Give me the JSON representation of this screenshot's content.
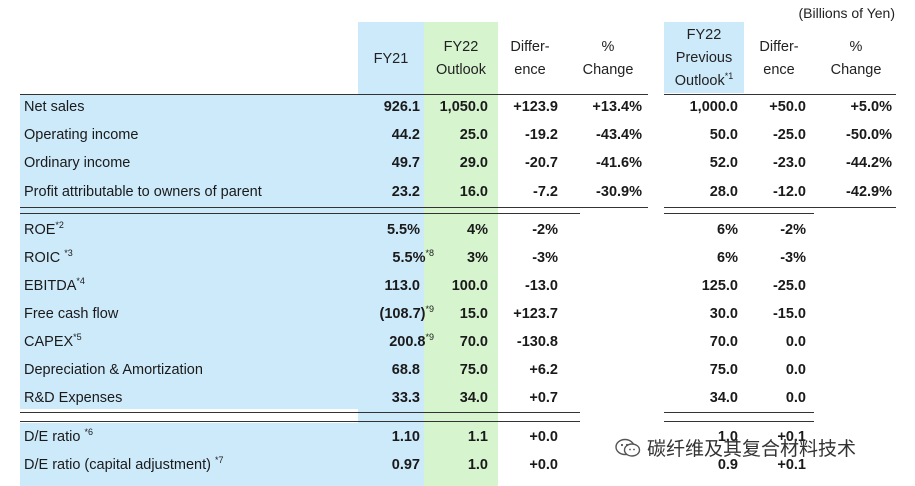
{
  "unit_note": "(Billions of Yen)",
  "headers": {
    "fy21": "FY21",
    "outlook": [
      "FY22",
      "Outlook"
    ],
    "diff1": [
      "Differ-",
      "ence"
    ],
    "pct1": [
      "%",
      "Change"
    ],
    "prev": [
      "FY22",
      "Previous",
      "Outlook"
    ],
    "prev_note": "*1",
    "diff2": [
      "Differ-",
      "ence"
    ],
    "pct2": [
      "%",
      "Change"
    ]
  },
  "rows": [
    {
      "label": "Net sales",
      "label_note": "",
      "fy21": "926.1",
      "fy21_note": "",
      "outlook": "1,050.0",
      "diff": "+123.9",
      "pct": "+13.4%",
      "prev": "1,000.0",
      "diff2": "+50.0",
      "pct2": "+5.0%"
    },
    {
      "label": "Operating income",
      "label_note": "",
      "fy21": "44.2",
      "fy21_note": "",
      "outlook": "25.0",
      "diff": "-19.2",
      "pct": "-43.4%",
      "prev": "50.0",
      "diff2": "-25.0",
      "pct2": "-50.0%"
    },
    {
      "label": "Ordinary income",
      "label_note": "",
      "fy21": "49.7",
      "fy21_note": "",
      "outlook": "29.0",
      "diff": "-20.7",
      "pct": "-41.6%",
      "prev": "52.0",
      "diff2": "-23.0",
      "pct2": "-44.2%"
    },
    {
      "label": "Profit attributable to owners of parent",
      "label_note": "",
      "fy21": "23.2",
      "fy21_note": "",
      "outlook": "16.0",
      "diff": "-7.2",
      "pct": "-30.9%",
      "prev": "28.0",
      "diff2": "-12.0",
      "pct2": "-42.9%"
    },
    {
      "label": "ROE",
      "label_note": "*2",
      "fy21": "5.5%",
      "fy21_note": "",
      "outlook": "4%",
      "diff": "-2%",
      "pct": "",
      "prev": "6%",
      "diff2": "-2%",
      "pct2": ""
    },
    {
      "label": "ROIC ",
      "label_note": "*3",
      "fy21": "5.5%",
      "fy21_note": "*8",
      "outlook": "3%",
      "diff": "-3%",
      "pct": "",
      "prev": "6%",
      "diff2": "-3%",
      "pct2": ""
    },
    {
      "label": "EBITDA",
      "label_note": "*4",
      "fy21": "113.0",
      "fy21_note": "",
      "outlook": "100.0",
      "diff": "-13.0",
      "pct": "",
      "prev": "125.0",
      "diff2": "-25.0",
      "pct2": ""
    },
    {
      "label": "Free cash flow",
      "label_note": "",
      "fy21": "(108.7)",
      "fy21_note": "*9",
      "outlook": "15.0",
      "diff": "+123.7",
      "pct": "",
      "prev": "30.0",
      "diff2": "-15.0",
      "pct2": ""
    },
    {
      "label": "CAPEX",
      "label_note": "*5",
      "fy21": "200.8",
      "fy21_note": "*9",
      "outlook": "70.0",
      "diff": "-130.8",
      "pct": "",
      "prev": "70.0",
      "diff2": "0.0",
      "pct2": ""
    },
    {
      "label": "Depreciation & Amortization",
      "label_note": "",
      "fy21": "68.8",
      "fy21_note": "",
      "outlook": "75.0",
      "diff": "+6.2",
      "pct": "",
      "prev": "75.0",
      "diff2": "0.0",
      "pct2": ""
    },
    {
      "label": "R&D Expenses",
      "label_note": "",
      "fy21": "33.3",
      "fy21_note": "",
      "outlook": "34.0",
      "diff": "+0.7",
      "pct": "",
      "prev": "34.0",
      "diff2": "0.0",
      "pct2": ""
    },
    {
      "label": "D/E ratio ",
      "label_note": "*6",
      "fy21": "1.10",
      "fy21_note": "",
      "outlook": "1.1",
      "diff": "+0.0",
      "pct": "",
      "prev": "1.0",
      "diff2": "+0.1",
      "pct2": ""
    },
    {
      "label": "D/E ratio (capital adjustment) ",
      "label_note": "*7",
      "fy21": "0.97",
      "fy21_note": "",
      "outlook": "1.0",
      "diff": "+0.0",
      "pct": "",
      "prev": "0.9",
      "diff2": "+0.1",
      "pct2": ""
    }
  ],
  "watermark": "碳纤维及其复合材料技术",
  "watermark_icon": "wechat-icon"
}
